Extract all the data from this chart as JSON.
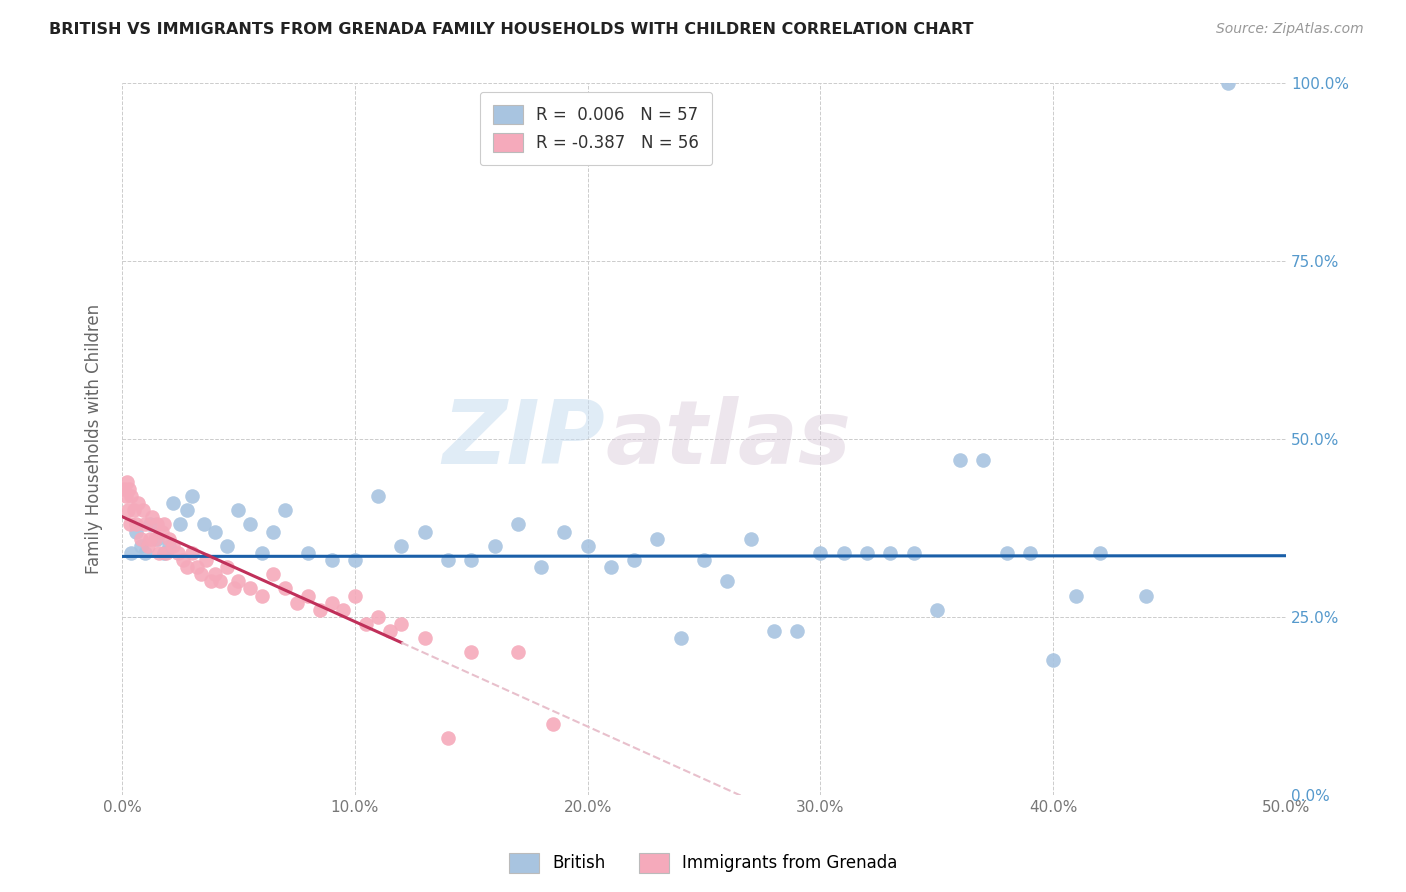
{
  "title": "BRITISH VS IMMIGRANTS FROM GRENADA FAMILY HOUSEHOLDS WITH CHILDREN CORRELATION CHART",
  "source": "Source: ZipAtlas.com",
  "xlabel_vals": [
    0.0,
    10.0,
    20.0,
    30.0,
    40.0,
    50.0
  ],
  "ylabel_vals": [
    0.0,
    25.0,
    50.0,
    75.0,
    100.0
  ],
  "xlim": [
    0.0,
    50.0
  ],
  "ylim": [
    0.0,
    100.0
  ],
  "legend_british_R": "0.006",
  "legend_british_N": "57",
  "legend_grenada_R": "-0.387",
  "legend_grenada_N": "56",
  "watermark_zip": "ZIP",
  "watermark_atlas": "atlas",
  "blue_color": "#a8c4e0",
  "pink_color": "#f5aabb",
  "trendline_blue": "#1a5fa8",
  "trendline_pink_solid": "#c0305a",
  "trendline_pink_dash": "#e8c0cc",
  "british_x": [
    0.4,
    0.6,
    0.8,
    1.0,
    1.2,
    1.5,
    1.8,
    2.0,
    2.2,
    2.5,
    2.8,
    3.0,
    3.5,
    4.0,
    4.5,
    5.0,
    5.5,
    6.0,
    6.5,
    7.0,
    8.0,
    9.0,
    10.0,
    11.0,
    12.0,
    13.0,
    14.0,
    15.0,
    16.0,
    17.0,
    18.0,
    19.0,
    20.0,
    21.0,
    22.0,
    23.0,
    24.0,
    25.0,
    26.0,
    27.0,
    28.0,
    29.0,
    30.0,
    31.0,
    32.0,
    33.0,
    34.0,
    35.0,
    36.0,
    37.0,
    38.0,
    39.0,
    40.0,
    41.0,
    42.0,
    44.0,
    47.5
  ],
  "british_y": [
    34.0,
    37.0,
    35.0,
    34.0,
    38.0,
    36.0,
    34.0,
    35.0,
    41.0,
    38.0,
    40.0,
    42.0,
    38.0,
    37.0,
    35.0,
    40.0,
    38.0,
    34.0,
    37.0,
    40.0,
    34.0,
    33.0,
    33.0,
    42.0,
    35.0,
    37.0,
    33.0,
    33.0,
    35.0,
    38.0,
    32.0,
    37.0,
    35.0,
    32.0,
    33.0,
    36.0,
    22.0,
    33.0,
    30.0,
    36.0,
    23.0,
    23.0,
    34.0,
    34.0,
    34.0,
    34.0,
    34.0,
    26.0,
    47.0,
    47.0,
    34.0,
    34.0,
    19.0,
    28.0,
    34.0,
    28.0,
    100.0
  ],
  "grenada_x": [
    0.1,
    0.15,
    0.2,
    0.25,
    0.3,
    0.35,
    0.4,
    0.5,
    0.6,
    0.7,
    0.8,
    0.9,
    1.0,
    1.1,
    1.2,
    1.3,
    1.4,
    1.5,
    1.6,
    1.7,
    1.8,
    1.9,
    2.0,
    2.2,
    2.4,
    2.6,
    2.8,
    3.0,
    3.2,
    3.4,
    3.6,
    3.8,
    4.0,
    4.2,
    4.5,
    4.8,
    5.0,
    5.5,
    6.0,
    6.5,
    7.0,
    7.5,
    8.0,
    8.5,
    9.0,
    9.5,
    10.0,
    10.5,
    11.0,
    11.5,
    12.0,
    13.0,
    14.0,
    15.0,
    17.0,
    18.5
  ],
  "grenada_y": [
    43.0,
    42.0,
    44.0,
    40.0,
    43.0,
    38.0,
    42.0,
    40.0,
    38.0,
    41.0,
    36.0,
    40.0,
    38.0,
    35.0,
    36.0,
    39.0,
    36.0,
    38.0,
    34.0,
    37.0,
    38.0,
    34.0,
    36.0,
    35.0,
    34.0,
    33.0,
    32.0,
    34.0,
    32.0,
    31.0,
    33.0,
    30.0,
    31.0,
    30.0,
    32.0,
    29.0,
    30.0,
    29.0,
    28.0,
    31.0,
    29.0,
    27.0,
    28.0,
    26.0,
    27.0,
    26.0,
    28.0,
    24.0,
    25.0,
    23.0,
    24.0,
    22.0,
    8.0,
    20.0,
    20.0,
    10.0
  ]
}
